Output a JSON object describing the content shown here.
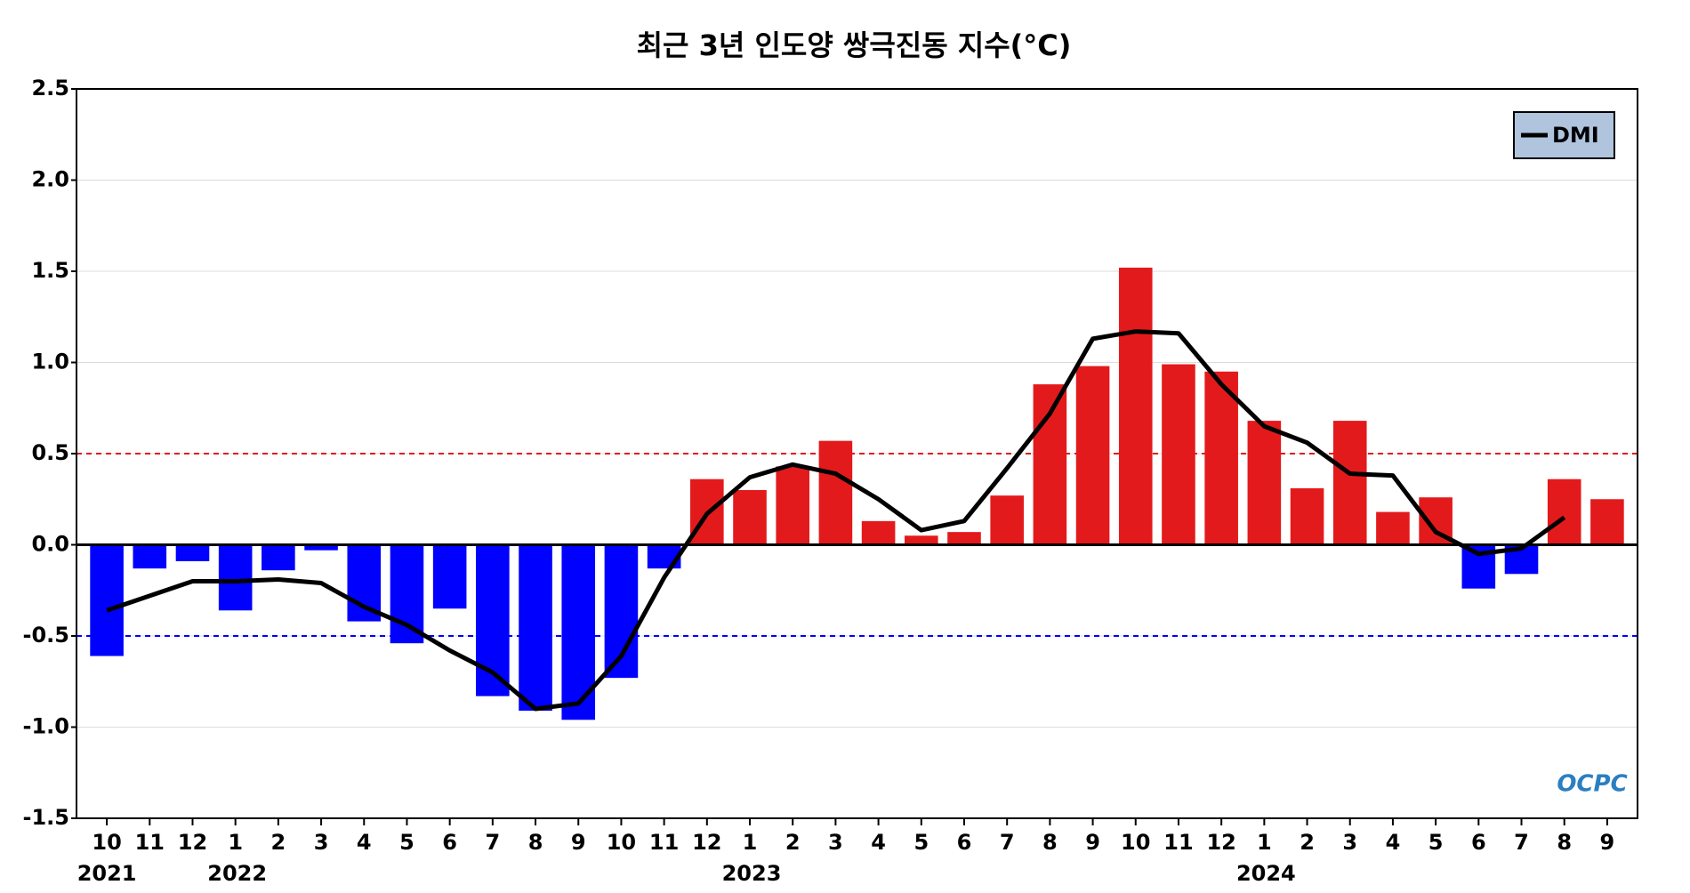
{
  "chart_data": {
    "type": "bar",
    "title": "최근 3년 인도양 쌍극진동 지수(°C)",
    "categories": [
      "10",
      "11",
      "12",
      "1",
      "2",
      "3",
      "4",
      "5",
      "6",
      "7",
      "8",
      "9",
      "10",
      "11",
      "12",
      "1",
      "2",
      "3",
      "4",
      "5",
      "6",
      "7",
      "8",
      "9",
      "10",
      "11",
      "12",
      "1",
      "2",
      "3",
      "4",
      "5",
      "6",
      "7",
      "8",
      "9"
    ],
    "years": [
      "2021",
      "2022",
      "2023",
      "2024"
    ],
    "bars": {
      "positive_color": "#e31a1c",
      "negative_color": "#0000ff",
      "values": [
        -0.61,
        -0.13,
        -0.09,
        -0.36,
        -0.14,
        -0.03,
        -0.42,
        -0.54,
        -0.35,
        -0.83,
        -0.91,
        -0.96,
        -0.73,
        -0.13,
        0.36,
        0.3,
        0.43,
        0.57,
        0.13,
        0.05,
        0.07,
        0.27,
        0.88,
        0.98,
        1.52,
        0.99,
        0.95,
        0.68,
        0.31,
        0.68,
        0.18,
        0.26,
        -0.24,
        -0.16,
        0.36,
        0.25
      ]
    },
    "series": [
      {
        "name": "DMI",
        "color": "#000000",
        "values": [
          -0.36,
          -0.28,
          -0.2,
          -0.2,
          -0.19,
          -0.21,
          -0.34,
          -0.44,
          -0.58,
          -0.7,
          -0.9,
          -0.87,
          -0.61,
          -0.18,
          0.17,
          0.37,
          0.44,
          0.39,
          0.25,
          0.08,
          0.13,
          0.42,
          0.72,
          1.13,
          1.17,
          1.16,
          0.88,
          0.65,
          0.56,
          0.39,
          0.38,
          0.07,
          -0.05,
          -0.02,
          0.15,
          null
        ]
      }
    ],
    "thresholds": [
      {
        "value": 0.5,
        "color": "#e31a1c"
      },
      {
        "value": -0.5,
        "color": "#0000ff"
      }
    ],
    "ylim": [
      -1.5,
      2.5
    ],
    "yticks": [
      -1.5,
      {
        "value": -1.0,
        "label": "-1.0"
      },
      -0.5,
      {
        "value": 0.0,
        "label": "0.0"
      },
      0.5,
      {
        "value": 1.0,
        "label": "1.0"
      },
      1.5,
      {
        "value": 2.0,
        "label": "2.0"
      },
      2.5
    ],
    "grid": true,
    "legend": "upper right",
    "logo": "OCPC"
  }
}
